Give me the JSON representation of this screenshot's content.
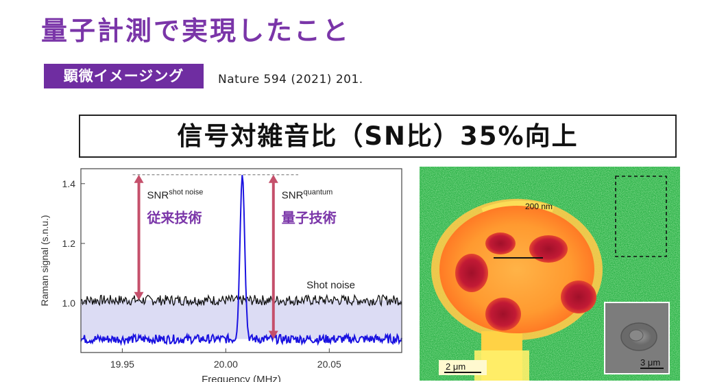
{
  "page_title": "量子計測で実現したこと",
  "tag_label": "顕微イメージング",
  "reference": "Nature 594 (2021) 201.",
  "headline": "信号対雑音比（SN比）35%向上",
  "chart_data": {
    "type": "line",
    "xlabel": "Frequency (MHz)",
    "ylabel": "Raman signal (s.n.u.)",
    "xlim": [
      19.93,
      20.085
    ],
    "ylim": [
      0.835,
      1.45
    ],
    "xticks": [
      "19.95",
      "20.00",
      "20.05"
    ],
    "yticks": [
      "1.0",
      "1.2",
      "1.4"
    ],
    "series": [
      {
        "name": "Shot noise",
        "color": "#111111",
        "baseline": 1.01,
        "peak_height": 0.0
      },
      {
        "name": "",
        "color": "#1a12e0",
        "baseline": 0.88,
        "peak_center": 20.008,
        "peak_height": 1.43
      }
    ],
    "annotations": {
      "snr_shot_main": "SNR",
      "snr_shot_sup": "shot noise",
      "snr_shot_jp": "従来技術",
      "snr_quant_main": "SNR",
      "snr_quant_sup": "quantum",
      "snr_quant_jp": "量子技術",
      "shot_noise_label": "Shot noise"
    },
    "colors": {
      "arrow": "#c5506b",
      "annotation_jp": "#7a35a8",
      "fill": "#dcdcf4"
    }
  },
  "micrograph": {
    "scale_200nm": "200 nm",
    "scale_2um": "2 μm",
    "inset_scale": "3 μm"
  }
}
